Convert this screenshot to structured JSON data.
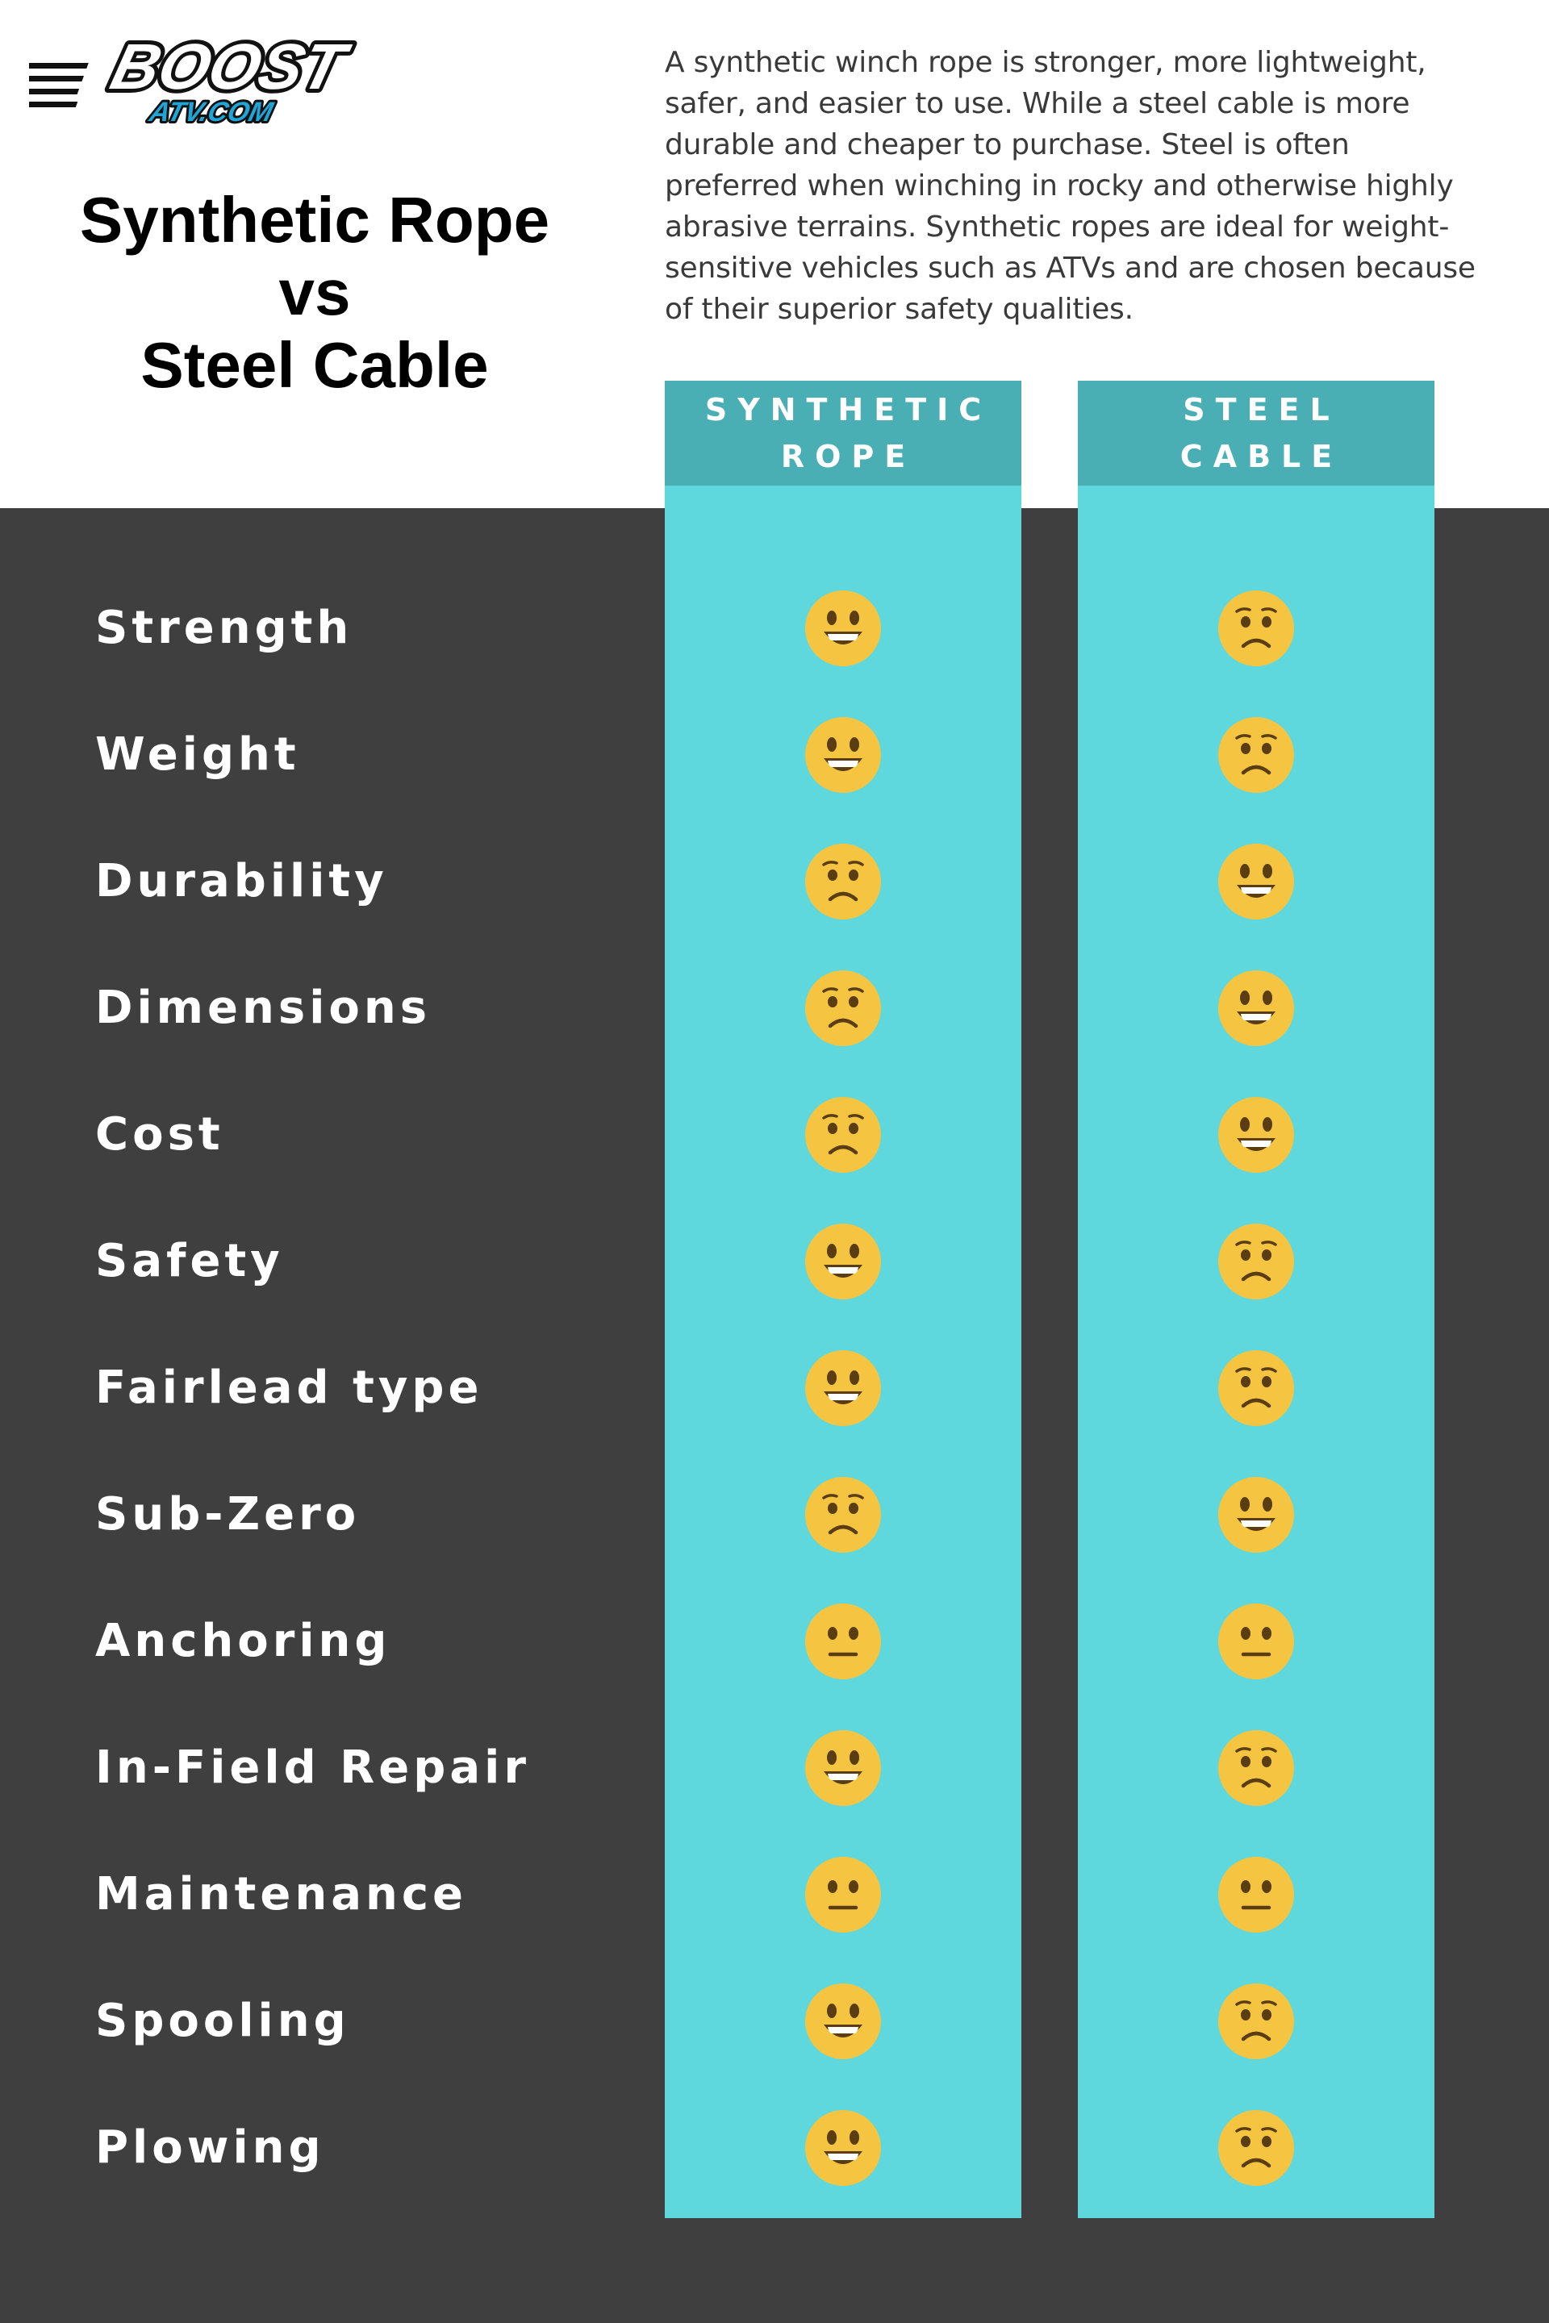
{
  "logo": {
    "text_main": "BOOST",
    "text_sub": "ATV.COM"
  },
  "title": {
    "line1": "Synthetic Rope",
    "line2": "vs",
    "line3": "Steel Cable"
  },
  "intro": "A synthetic winch rope is stronger, more lightweight, safer, and easier to use. While a steel cable is more durable and cheaper to purchase. Steel is often preferred when winching in rocky and otherwise highly abrasive terrains. Synthetic ropes are ideal for weight-sensitive vehicles such as ATVs and are chosen because of their superior safety qualities.",
  "columns": {
    "synthetic": {
      "line1": "SYNTHETIC",
      "line2": "ROPE"
    },
    "steel": {
      "line1": "STEEL",
      "line2": "CABLE"
    }
  },
  "rows": [
    {
      "label": "Strength",
      "synthetic": "happy",
      "steel": "sad"
    },
    {
      "label": "Weight",
      "synthetic": "happy",
      "steel": "sad"
    },
    {
      "label": "Durability",
      "synthetic": "sad",
      "steel": "happy"
    },
    {
      "label": "Dimensions",
      "synthetic": "sad",
      "steel": "happy"
    },
    {
      "label": "Cost",
      "synthetic": "sad",
      "steel": "happy"
    },
    {
      "label": "Safety",
      "synthetic": "happy",
      "steel": "sad"
    },
    {
      "label": "Fairlead type",
      "synthetic": "happy",
      "steel": "sad"
    },
    {
      "label": "Sub-Zero",
      "synthetic": "sad",
      "steel": "happy"
    },
    {
      "label": "Anchoring",
      "synthetic": "neutral",
      "steel": "neutral"
    },
    {
      "label": "In-Field Repair",
      "synthetic": "happy",
      "steel": "sad"
    },
    {
      "label": "Maintenance",
      "synthetic": "neutral",
      "steel": "neutral"
    },
    {
      "label": "Spooling",
      "synthetic": "happy",
      "steel": "sad"
    },
    {
      "label": "Plowing",
      "synthetic": "happy",
      "steel": "sad"
    }
  ],
  "colors": {
    "dark_background": "#3f3f40",
    "column_fill": "#5ed8dc",
    "column_header": "#4aafb4",
    "emoji_face": "#f5c542",
    "logo_accent": "#1fa5d6"
  }
}
